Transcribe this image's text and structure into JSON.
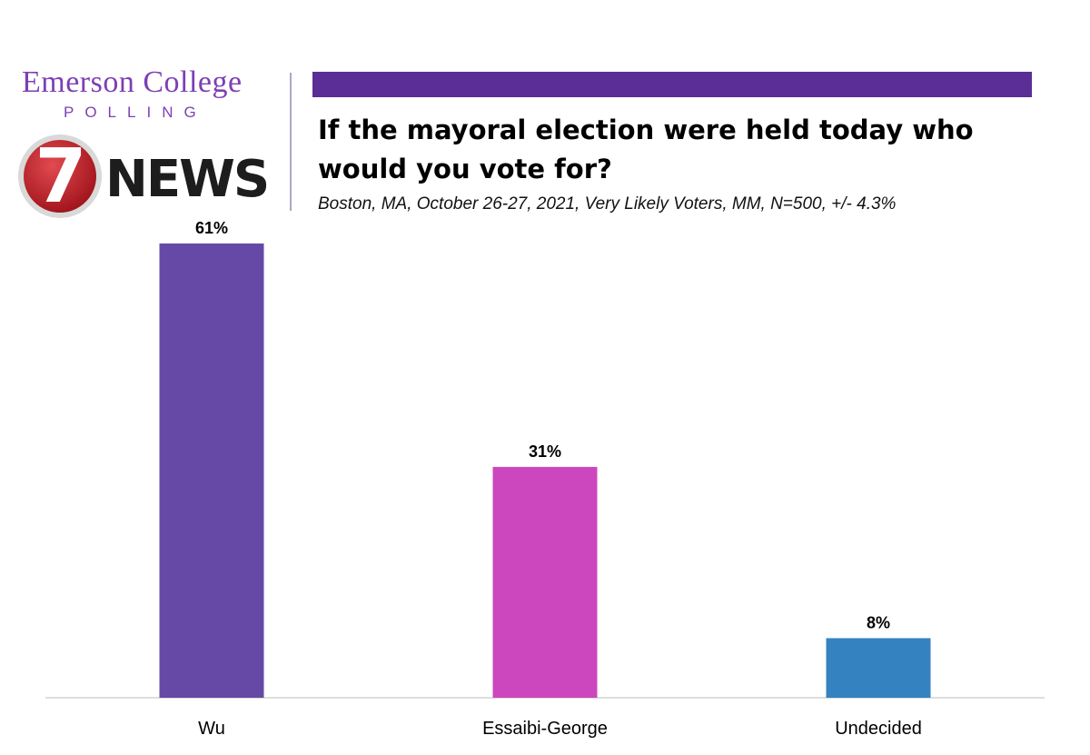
{
  "branding": {
    "org_name": "Emerson College",
    "org_sub": "POLLING",
    "news_number": "7",
    "news_word": "NEWS",
    "accent_color": "#5b2d96",
    "brand_text_color": "#7d3fb5",
    "news_red": "#c0262e"
  },
  "chart_data": {
    "type": "bar",
    "title": "If the mayoral election were held today who would you vote for?",
    "subtitle": "Boston, MA, October 26-27, 2021, Very Likely Voters, MM, N=500, +/- 4.3%",
    "categories": [
      "Wu",
      "Essaibi-George",
      "Undecided"
    ],
    "values": [
      61,
      31,
      8
    ],
    "data_labels": [
      "61%",
      "31%",
      "8%"
    ],
    "colors": [
      "#6649a6",
      "#cc47bd",
      "#3582c0"
    ],
    "ylim": [
      0,
      61
    ],
    "grid": false,
    "legend": "none"
  }
}
